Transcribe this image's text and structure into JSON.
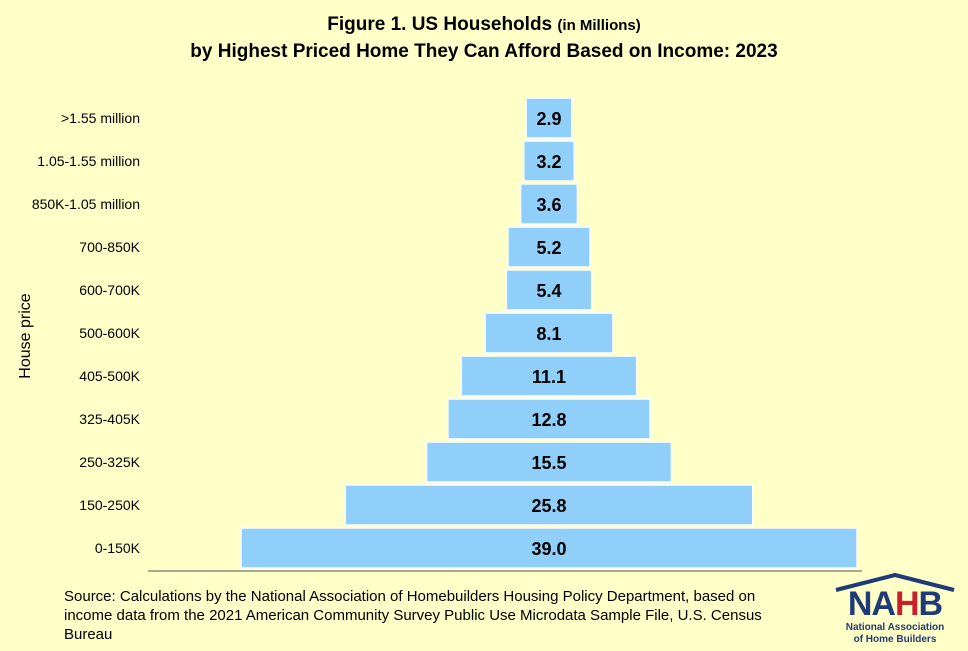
{
  "title_line1_main": "Figure 1. US Households ",
  "title_line1_small": "(in Millions)",
  "title_line2": "by Highest Priced Home They Can Afford Based on Income: 2023",
  "source": "Source: Calculations by the National Association of Homebuilders Housing Policy Department, based on income data from the 2021 American Community Survey Public Use Microdata Sample File, U.S. Census Bureau",
  "logo": {
    "brand_n": "NA",
    "brand_h": "H",
    "brand_b": "B",
    "org_line1": "National Association",
    "org_line2": "of Home Builders",
    "colors": {
      "navy": "#1F3A78",
      "red": "#C8202F"
    }
  },
  "colors": {
    "background": "#FFFFC8",
    "bar_fill": "#8FCFFA",
    "bar_stroke": "#FFFFFF",
    "axis": "#555555"
  },
  "chart_data": {
    "type": "bar",
    "orientation": "horizontal",
    "style": "centered (pyramid)",
    "ylabel": "House price",
    "xlabel": "",
    "grid": false,
    "legend": "none",
    "categories": [
      ">1.55 million",
      "1.05-1.55 million",
      "850K-1.05 million",
      "700-850K",
      "600-700K",
      "500-600K",
      "405-500K",
      "325-405K",
      "250-325K",
      "150-250K",
      "0-150K"
    ],
    "values": [
      2.9,
      3.2,
      3.6,
      5.2,
      5.4,
      8.1,
      11.1,
      12.8,
      15.5,
      25.8,
      39.0
    ],
    "value_labels": [
      "2.9",
      "3.2",
      "3.6",
      "5.2",
      "5.4",
      "8.1",
      "11.1",
      "12.8",
      "15.5",
      "25.8",
      "39.0"
    ],
    "units": "Millions of households"
  }
}
